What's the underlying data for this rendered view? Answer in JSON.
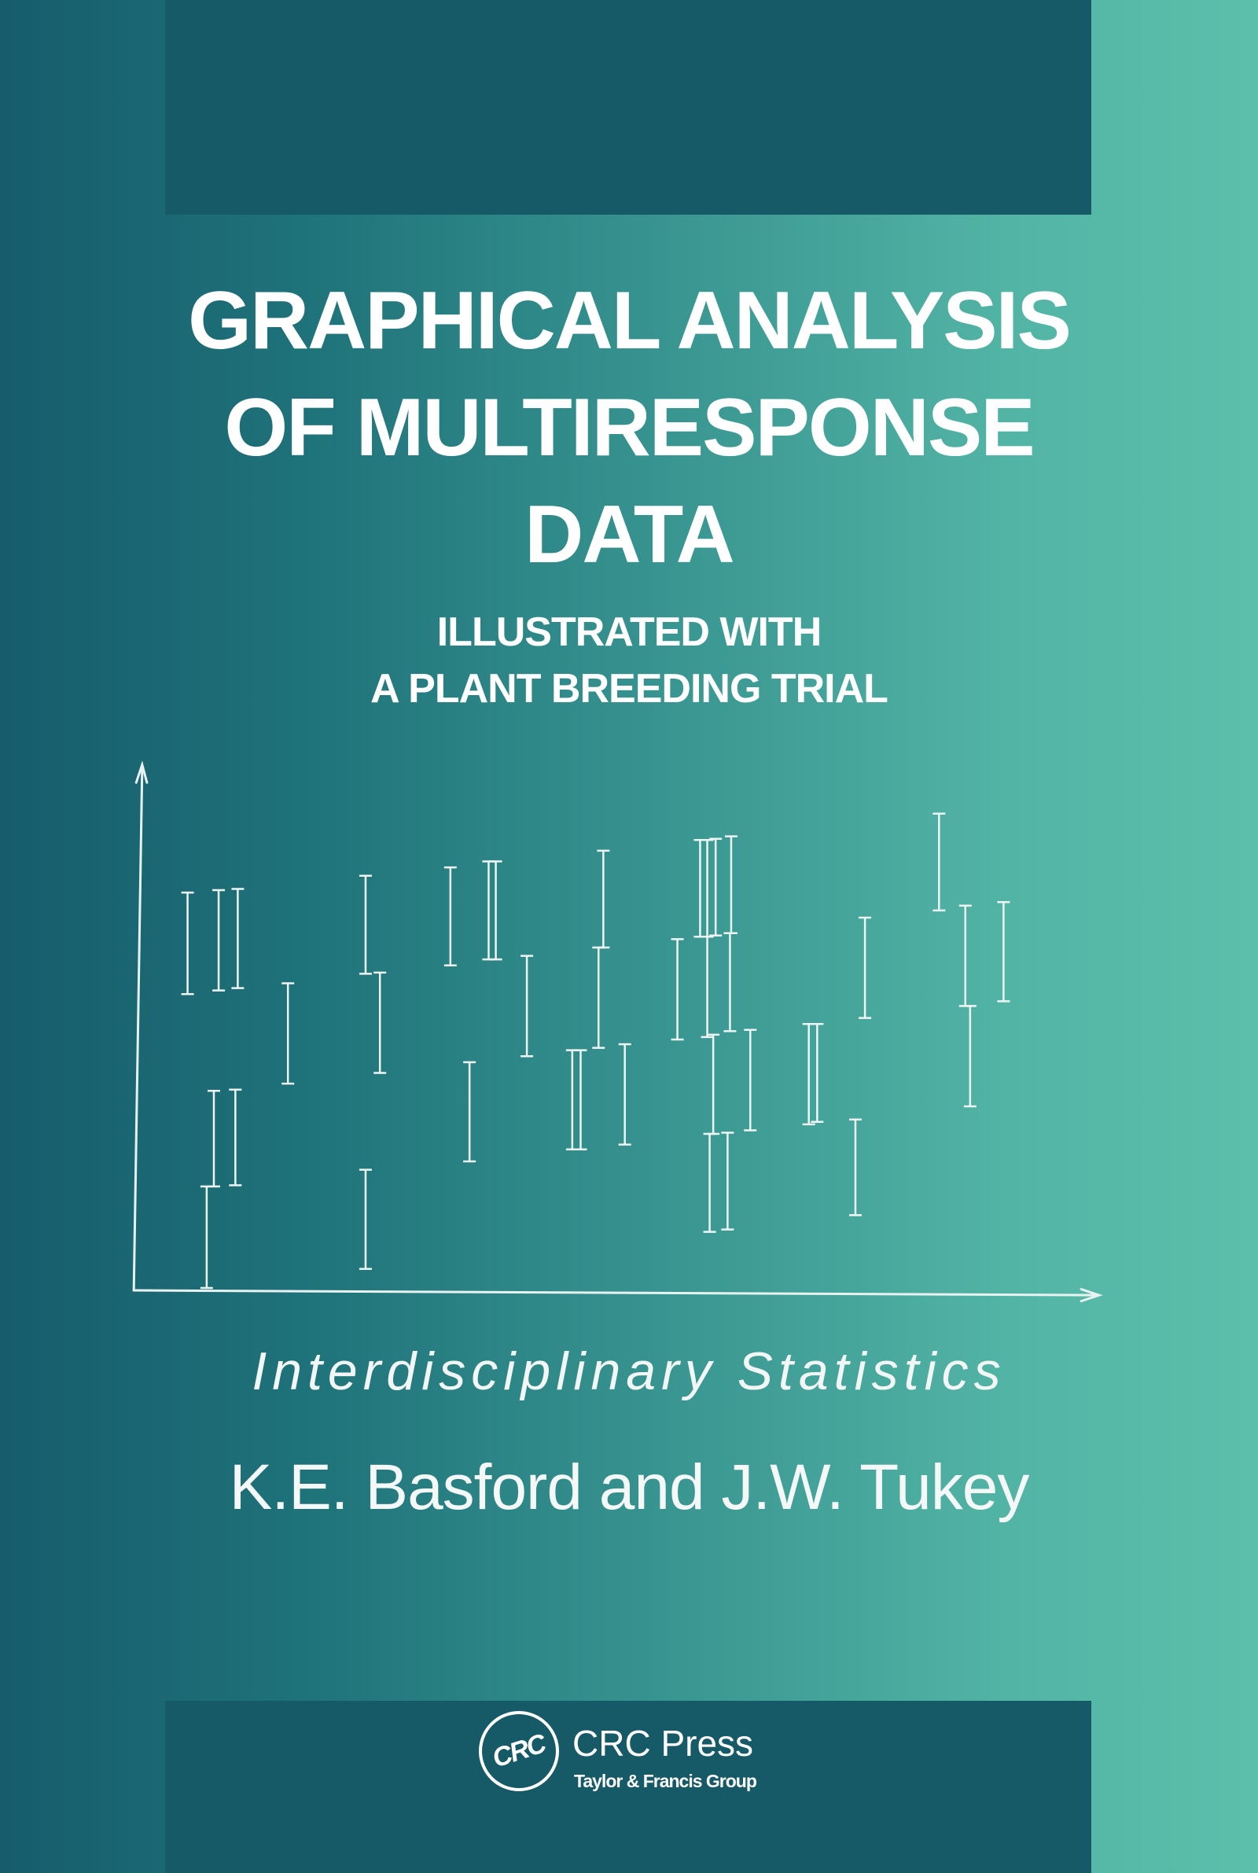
{
  "cover": {
    "title_lines": [
      "GRAPHICAL ANALYSIS",
      "OF MULTIRESPONSE",
      "DATA"
    ],
    "subtitle_lines": [
      "ILLUSTRATED WITH",
      "A PLANT BREEDING TRIAL"
    ],
    "series": "Interdisciplinary Statistics",
    "authors": "K.E. Basford and J.W. Tukey",
    "publisher": {
      "logo_text": "CRC",
      "name": "CRC Press",
      "group": "Taylor & Francis Group"
    }
  },
  "colors": {
    "band": "#155a66",
    "gradient_left": "#165c6c",
    "gradient_right": "#5cbfab",
    "text": "#ffffff"
  }
}
